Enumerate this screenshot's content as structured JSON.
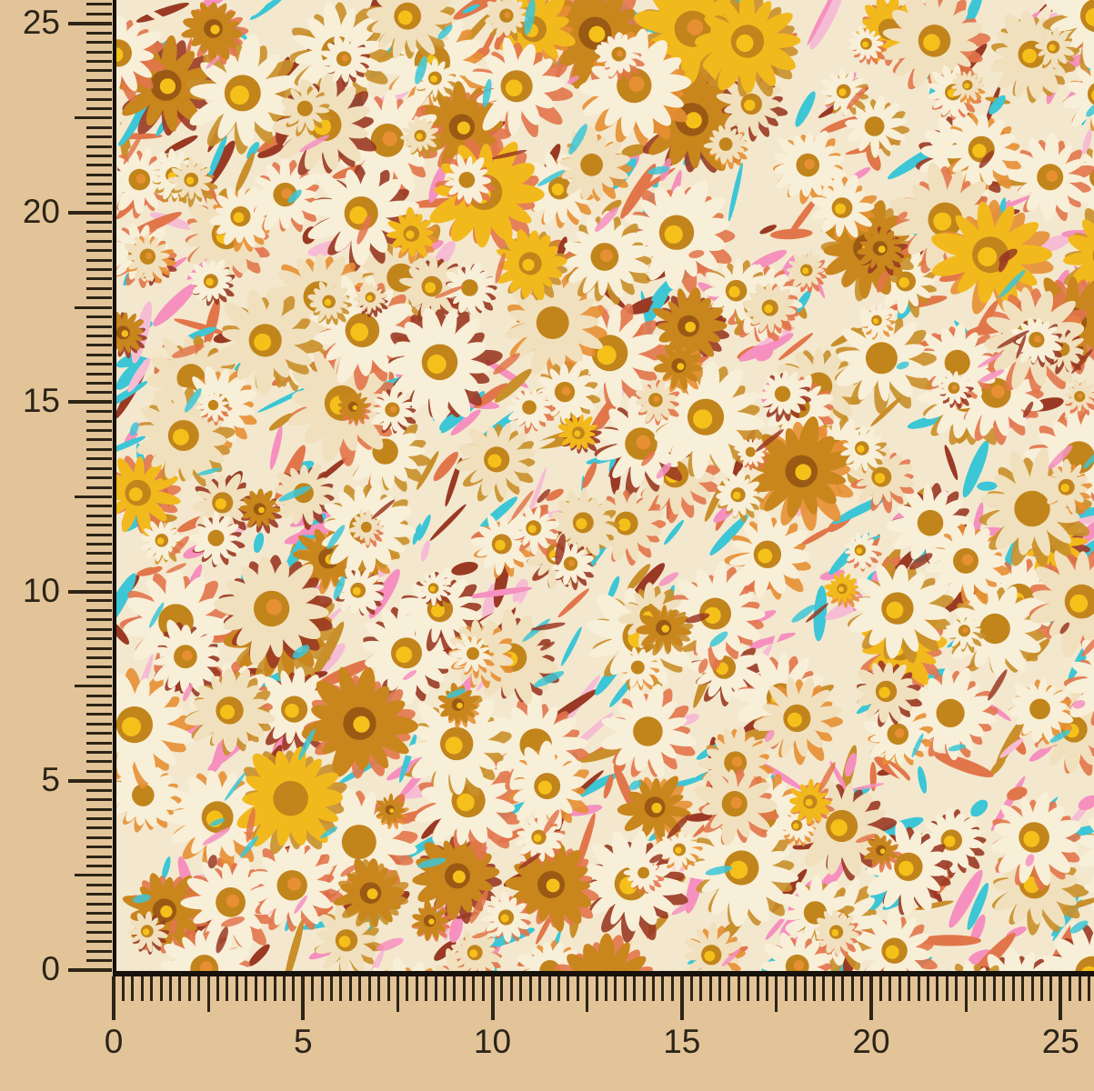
{
  "background_color": "#e3c498",
  "rulers": {
    "tick_color": "#2e2417",
    "label_color": "#2b2418",
    "left": {
      "labels": [
        "0",
        "5",
        "10",
        "15",
        "20",
        "25"
      ]
    },
    "bottom": {
      "labels": [
        "0",
        "5",
        "10",
        "15",
        "20",
        "25"
      ]
    }
  },
  "fabric": {
    "border_color": "#17120c",
    "base_color": "#f3e8ce",
    "palette": {
      "petal_cream": "#f8efd9",
      "petal_warm": "#f1e0bd",
      "petal_ochre": "#c8861d",
      "petal_yellow": "#f2b91c",
      "center_ochre": "#c1851c",
      "center_dark": "#9a5a14",
      "center_yellow": "#f6c01b",
      "center_orange": "#e78f33",
      "stroke_teal": "#3cc6d6",
      "stroke_pink": "#f590bf",
      "stroke_lightpink": "#f6bcd4",
      "stroke_salmon": "#e2764b",
      "stroke_maroon": "#9a3a24",
      "stroke_ochre": "#c98f2a",
      "stroke_cream": "#f4e7ca"
    }
  }
}
